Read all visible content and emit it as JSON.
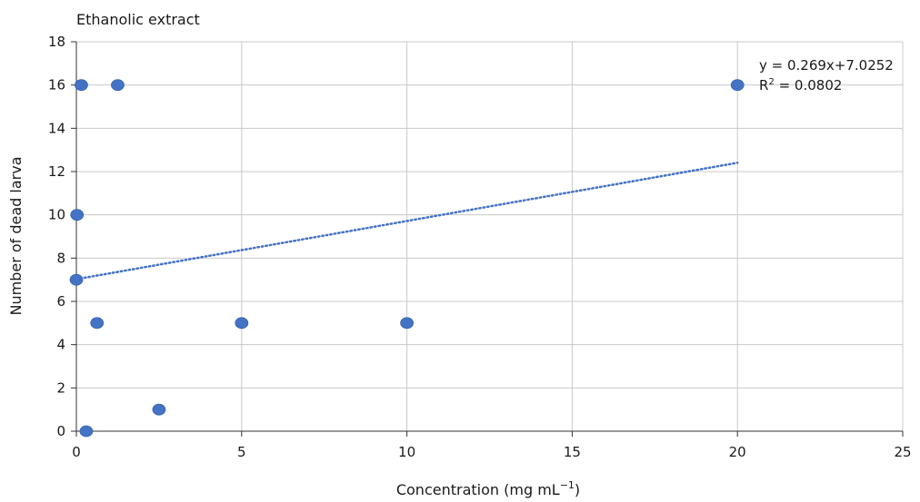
{
  "chart_data": {
    "type": "scatter",
    "title": "Ethanolic extract",
    "xlabel": "Concentration (mg mL",
    "xlabel_sup": "−1",
    "xlabel_suffix": ")",
    "ylabel": "Number of dead larva",
    "xlim": [
      0,
      25
    ],
    "ylim": [
      0,
      18
    ],
    "xticks": [
      "0",
      "5",
      "10",
      "15",
      "20",
      "25"
    ],
    "yticks": [
      "0",
      "2",
      "4",
      "6",
      "8",
      "10",
      "12",
      "14",
      "16",
      "18"
    ],
    "grid": true,
    "series": [
      {
        "x": [
          0.0,
          0.02,
          0.15,
          0.3,
          0.625,
          1.25,
          2.5,
          5.0,
          10.0,
          20.0
        ],
        "y": [
          7,
          10,
          16,
          0,
          5,
          16,
          1,
          5,
          5,
          16
        ],
        "color": "#4472c4"
      }
    ],
    "trendline": {
      "type": "linear",
      "slope": 0.269,
      "intercept": 7.0252,
      "x_range": [
        0,
        20
      ],
      "style": "dotted",
      "color": "#4472c4",
      "equation_label": "y = 0.269x+7.0252",
      "r2_label_prefix": "R",
      "r2_label_sup": "2",
      "r2_label_suffix": " = 0.0802"
    }
  }
}
